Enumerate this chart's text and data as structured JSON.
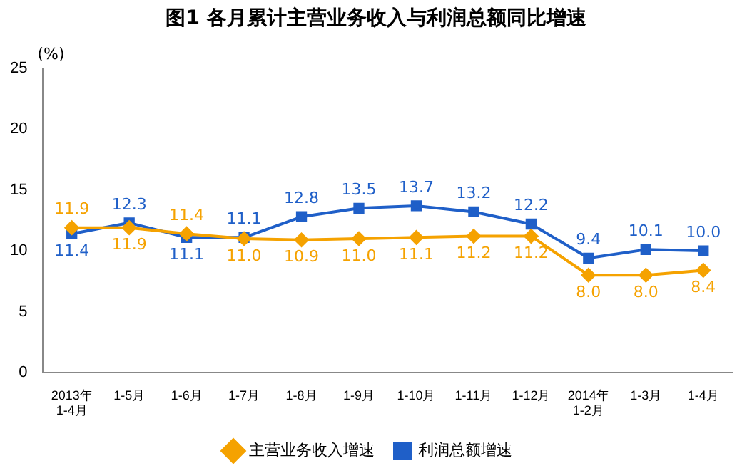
{
  "chart_data": {
    "type": "line",
    "title": "图1  各月累计主营业务收入与利润总额同比增速",
    "ylabel": "(%)",
    "categories": [
      "2013年\n1-4月",
      "1-5月",
      "1-6月",
      "1-7月",
      "1-8月",
      "1-9月",
      "1-10月",
      "1-11月",
      "1-12月",
      "2014年\n1-2月",
      "1-3月",
      "1-4月"
    ],
    "series": [
      {
        "name": "主营业务收入增速",
        "color": "#f5a200",
        "marker": "diamond",
        "values": [
          11.9,
          11.9,
          11.4,
          11.0,
          10.9,
          11.0,
          11.1,
          11.2,
          11.2,
          8.0,
          8.0,
          8.4
        ],
        "value_labels": [
          "11.9",
          "11.9",
          "11.4",
          "11.0",
          "10.9",
          "11.0",
          "11.1",
          "11.2",
          "11.2",
          "8.0",
          "8.0",
          "8.4"
        ]
      },
      {
        "name": "利润总额增速",
        "color": "#1f5fc8",
        "marker": "square",
        "values": [
          11.4,
          12.3,
          11.1,
          11.1,
          12.8,
          13.5,
          13.7,
          13.2,
          12.2,
          9.4,
          10.1,
          10.0
        ],
        "value_labels": [
          "11.4",
          "12.3",
          "11.1",
          "11.1",
          "12.8",
          "13.5",
          "13.7",
          "13.2",
          "12.2",
          "9.4",
          "10.1",
          "10.0"
        ]
      }
    ],
    "ylim": [
      0,
      25
    ],
    "yticks": [
      0,
      5,
      10,
      15,
      20,
      25
    ],
    "grid": false,
    "legend": "bottom"
  }
}
